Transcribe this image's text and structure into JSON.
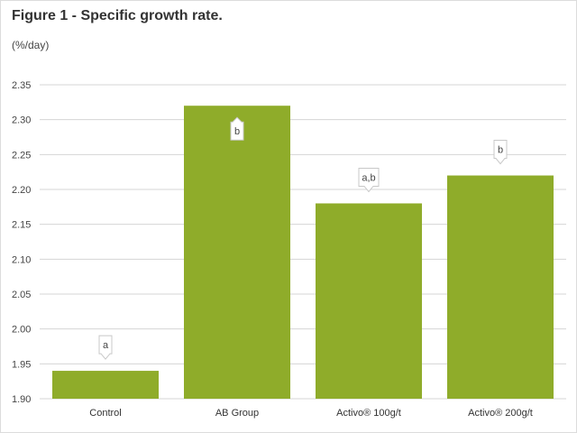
{
  "title": "Figure 1 - Specific growth rate.",
  "ylabel": "(%/day)",
  "colors": {
    "bar": "#8fac2a",
    "grid": "#d5d5d5",
    "annotation_fill": "#ffffff",
    "annotation_stroke": "#c8c8c8"
  },
  "chart_data": {
    "type": "bar",
    "title": "Figure 1 - Specific growth rate.",
    "xlabel": "",
    "ylabel": "(%/day)",
    "categories": [
      "Control",
      "AB Group",
      "Activo® 100g/t",
      "Activo® 200g/t"
    ],
    "values": [
      1.94,
      2.32,
      2.18,
      2.22
    ],
    "annotations": [
      "a",
      "b",
      "a,b",
      "b"
    ],
    "ylim": [
      1.9,
      2.35
    ],
    "yticks": [
      "1.90",
      "1.95",
      "2.00",
      "2.05",
      "2.10",
      "2.15",
      "2.20",
      "2.25",
      "2.30",
      "2.35"
    ],
    "grid": true,
    "legend": "none"
  }
}
